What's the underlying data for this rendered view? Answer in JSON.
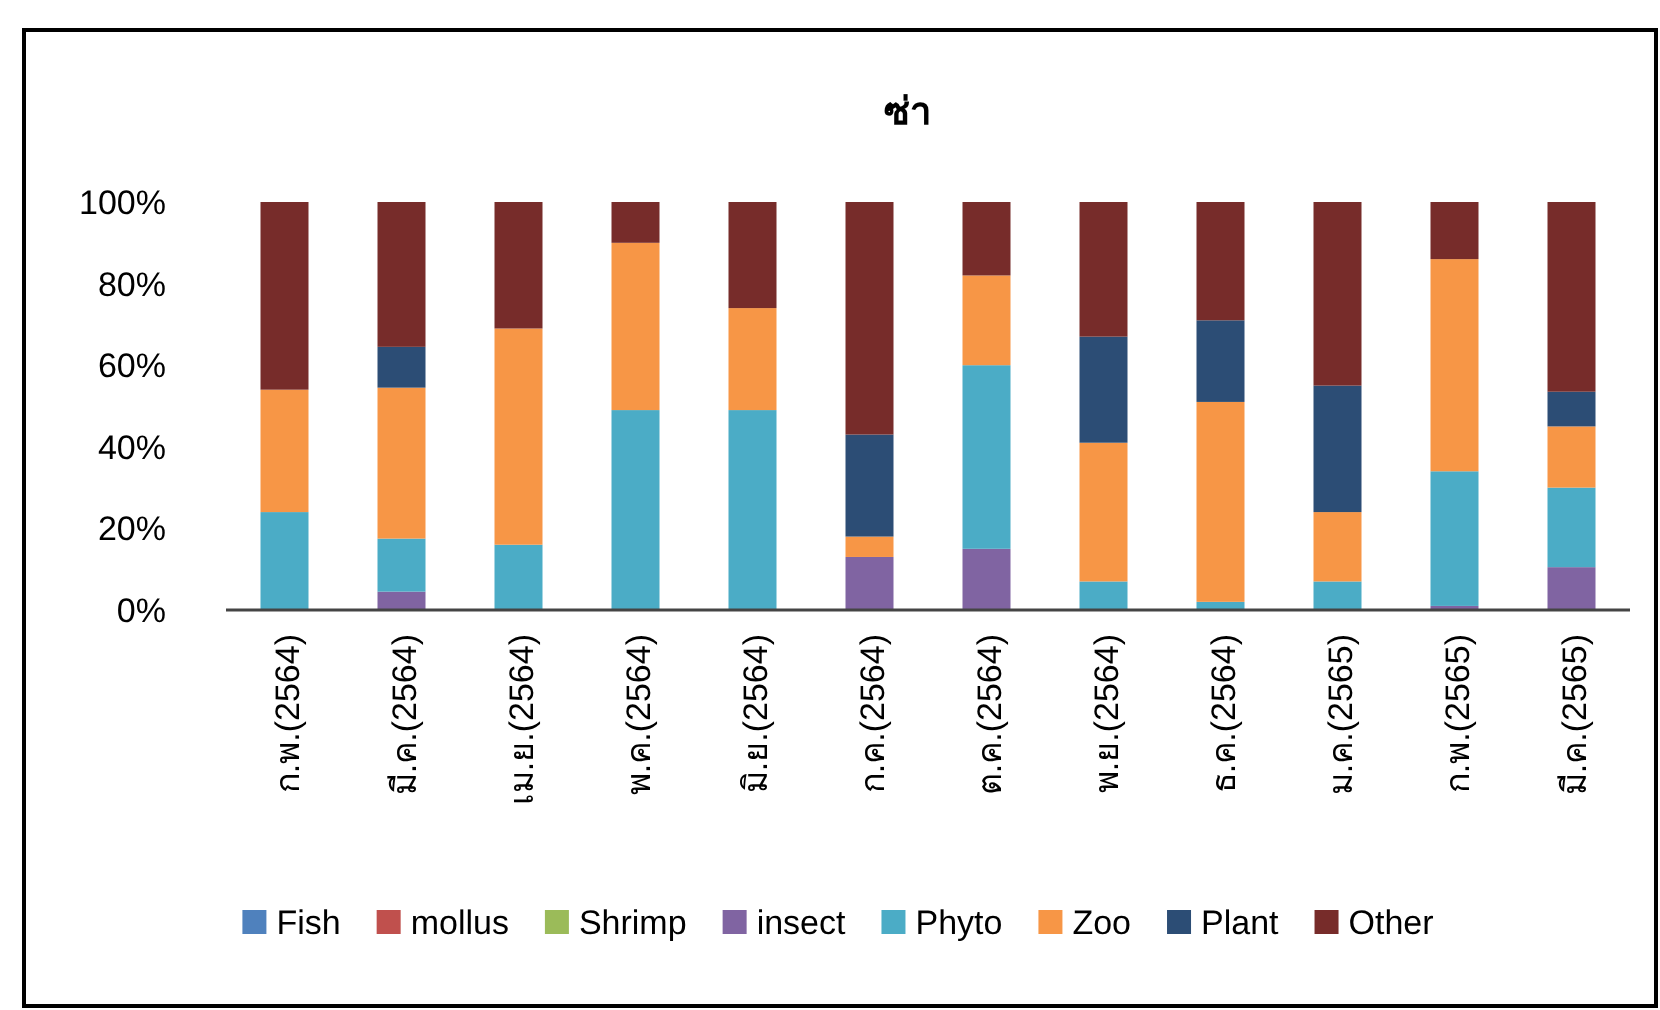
{
  "chart_data": {
    "type": "bar",
    "stacked": true,
    "title": "ซ่า",
    "categories": [
      "ก.พ.(2564)",
      "มี.ค.(2564)",
      "เม.ย.(2564)",
      "พ.ค.(2564)",
      "มิ.ย.(2564)",
      "ก.ค.(2564)",
      "ต.ค.(2564)",
      "พ.ย.(2564)",
      "ธ.ค.(2564)",
      "ม.ค.(2565)",
      "ก.พ.(2565)",
      "มี.ค.(2565)"
    ],
    "series": [
      {
        "name": "Fish",
        "color": "#4f81bd",
        "values": [
          0,
          0,
          0,
          0,
          0,
          0,
          0,
          0,
          0,
          0,
          0,
          0
        ]
      },
      {
        "name": "mollus",
        "color": "#c0504d",
        "values": [
          0,
          0,
          0,
          0,
          0,
          0,
          0,
          0,
          0,
          0,
          0,
          0
        ]
      },
      {
        "name": "Shrimp",
        "color": "#9bbb59",
        "values": [
          0,
          0,
          0,
          0,
          0,
          0,
          0,
          0,
          0,
          0,
          0,
          0
        ]
      },
      {
        "name": "insect",
        "color": "#8064a2",
        "values": [
          0,
          4.5,
          0,
          0,
          0,
          13,
          15,
          0,
          0,
          0,
          1,
          10.5
        ]
      },
      {
        "name": "Phyto",
        "color": "#4bacc6",
        "values": [
          24,
          13,
          16,
          49,
          49,
          0,
          45,
          7,
          2,
          7,
          33,
          19.5
        ]
      },
      {
        "name": "Zoo",
        "color": "#f79646",
        "values": [
          30,
          37,
          53,
          41,
          25,
          5,
          22,
          34,
          49,
          17,
          52,
          15
        ]
      },
      {
        "name": "Plant",
        "color": "#2c4d75",
        "values": [
          0,
          10,
          0,
          0,
          0,
          25,
          0,
          26,
          20,
          31,
          0,
          8.5
        ]
      },
      {
        "name": "Other",
        "color": "#772c2a",
        "values": [
          46,
          35.5,
          31,
          10,
          26,
          57,
          18,
          33,
          29,
          45,
          14,
          46.5
        ]
      }
    ],
    "ylim": [
      0,
      100
    ],
    "yticks": [
      {
        "value": 0,
        "label": "0%"
      },
      {
        "value": 20,
        "label": "20%"
      },
      {
        "value": 40,
        "label": "40%"
      },
      {
        "value": 60,
        "label": "60%"
      },
      {
        "value": 80,
        "label": "80%"
      },
      {
        "value": 100,
        "label": "100%"
      }
    ],
    "grid": false,
    "legend": "bottom"
  }
}
